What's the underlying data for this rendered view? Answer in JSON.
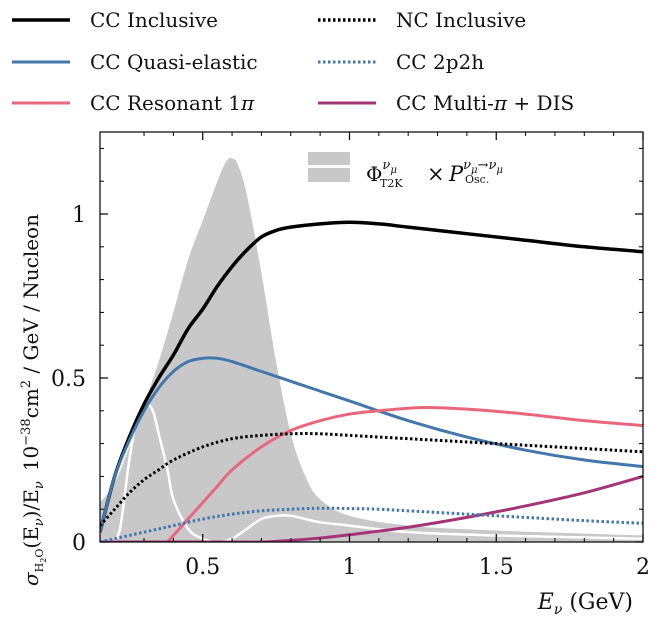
{
  "chart_data": {
    "type": "line",
    "title": "",
    "xlabel": "E_ν (GeV)",
    "xlabel_main": "E",
    "xlabel_sub": "ν",
    "xlabel_unit": " (GeV)",
    "ylabel": "σ_H2O(E_ν)/E_ν 10^-38 cm^2 / GeV / Nucleon",
    "ylabel_parts": {
      "sigma": "σ",
      "sigma_sub": "H",
      "sigma_sub2": "2",
      "sigma_sub3": "O",
      "arg": "(E",
      "arg_sub": "ν",
      "div": ")/E",
      "div_sub": "ν",
      "power": "10",
      "power_exp": "−38",
      "unit": "cm",
      "unit_exp": "2",
      "rest": " / GeV / Nucleon"
    },
    "xlim": [
      0.15,
      2.0
    ],
    "ylim": [
      0,
      1.25
    ],
    "xticks": [
      0.5,
      1.0,
      1.5,
      2.0
    ],
    "xtick_labels": [
      "0.5",
      "1",
      "1.5",
      "2"
    ],
    "yticks": [
      0,
      0.5,
      1.0
    ],
    "ytick_labels": [
      "0",
      "0.5",
      "1"
    ],
    "legend_placement": "top, outside plot, two columns",
    "flux_label": {
      "phi": "Φ",
      "phi_sup": "ν",
      "phi_sup_sub": "μ",
      "phi_sub": "T2K",
      "times": "×",
      "p": "P",
      "p_sup": "ν",
      "p_sup_sub": "μ",
      "arrow": "→",
      "p_sup2": "ν",
      "p_sup2_sub": "μ",
      "p_sub": "Osc."
    },
    "flux_band": {
      "name": "Φ T2K × P Osc.",
      "color": "#c8c8c8",
      "x": [
        0.15,
        0.2,
        0.25,
        0.3,
        0.35,
        0.4,
        0.45,
        0.5,
        0.55,
        0.58,
        0.6,
        0.62,
        0.65,
        0.7,
        0.75,
        0.8,
        0.85,
        0.9,
        1.0,
        1.2,
        1.5,
        2.0
      ],
      "values": [
        0.12,
        0.18,
        0.29,
        0.42,
        0.55,
        0.7,
        0.86,
        0.98,
        1.1,
        1.16,
        1.17,
        1.15,
        1.06,
        0.82,
        0.55,
        0.33,
        0.2,
        0.13,
        0.08,
        0.05,
        0.035,
        0.02
      ]
    },
    "white_curve": {
      "name": "oscillation shape",
      "color": "#ffffff",
      "x": [
        0.2,
        0.22,
        0.25,
        0.28,
        0.3,
        0.33,
        0.35,
        0.38,
        0.4,
        0.45,
        0.5,
        0.55,
        0.6,
        0.65,
        0.7,
        0.75,
        0.8,
        0.85,
        0.9,
        1.0,
        1.2,
        1.5,
        2.0
      ],
      "values": [
        0.0,
        0.05,
        0.25,
        0.4,
        0.43,
        0.4,
        0.33,
        0.22,
        0.13,
        0.04,
        0.01,
        0.0,
        0.01,
        0.04,
        0.07,
        0.08,
        0.08,
        0.07,
        0.06,
        0.05,
        0.03,
        0.02,
        0.01
      ]
    },
    "series": [
      {
        "name": "CC Inclusive",
        "color": "#000000",
        "style": "solid",
        "x": [
          0.15,
          0.2,
          0.25,
          0.3,
          0.35,
          0.4,
          0.45,
          0.5,
          0.55,
          0.6,
          0.65,
          0.7,
          0.75,
          0.8,
          0.9,
          1.0,
          1.1,
          1.2,
          1.4,
          1.6,
          1.8,
          2.0
        ],
        "values": [
          0.03,
          0.2,
          0.32,
          0.42,
          0.5,
          0.57,
          0.65,
          0.71,
          0.78,
          0.84,
          0.89,
          0.93,
          0.95,
          0.96,
          0.97,
          0.975,
          0.97,
          0.96,
          0.94,
          0.92,
          0.9,
          0.885
        ]
      },
      {
        "name": "CC Quasi-elastic",
        "color": "#4277ab",
        "style": "solid",
        "x": [
          0.15,
          0.2,
          0.25,
          0.3,
          0.35,
          0.4,
          0.45,
          0.5,
          0.55,
          0.6,
          0.7,
          0.8,
          0.9,
          1.0,
          1.2,
          1.4,
          1.6,
          1.8,
          2.0
        ],
        "values": [
          0.03,
          0.2,
          0.31,
          0.4,
          0.47,
          0.52,
          0.55,
          0.56,
          0.56,
          0.55,
          0.52,
          0.49,
          0.46,
          0.43,
          0.37,
          0.32,
          0.28,
          0.25,
          0.23
        ]
      },
      {
        "name": "CC Resonant 1π",
        "color": "#e9677b",
        "style": "solid",
        "x": [
          0.38,
          0.4,
          0.45,
          0.5,
          0.55,
          0.6,
          0.7,
          0.8,
          0.9,
          1.0,
          1.1,
          1.25,
          1.4,
          1.6,
          1.8,
          2.0
        ],
        "values": [
          0.0,
          0.02,
          0.07,
          0.12,
          0.17,
          0.22,
          0.29,
          0.34,
          0.37,
          0.39,
          0.4,
          0.41,
          0.405,
          0.39,
          0.37,
          0.355
        ]
      },
      {
        "name": "CC Multi-π + DIS",
        "color": "#a43475",
        "style": "solid",
        "x": [
          0.15,
          0.6,
          0.7,
          0.8,
          0.9,
          1.0,
          1.2,
          1.4,
          1.6,
          1.8,
          2.0
        ],
        "values": [
          0.0,
          0.0,
          0.0,
          0.005,
          0.012,
          0.022,
          0.045,
          0.075,
          0.11,
          0.15,
          0.2
        ]
      },
      {
        "name": "NC Inclusive",
        "color": "#000000",
        "style": "dotted",
        "x": [
          0.15,
          0.2,
          0.25,
          0.3,
          0.35,
          0.4,
          0.5,
          0.6,
          0.7,
          0.8,
          0.9,
          1.0,
          1.2,
          1.4,
          1.6,
          1.8,
          2.0
        ],
        "values": [
          0.05,
          0.1,
          0.15,
          0.19,
          0.22,
          0.25,
          0.29,
          0.315,
          0.325,
          0.33,
          0.33,
          0.325,
          0.315,
          0.305,
          0.295,
          0.285,
          0.275
        ]
      },
      {
        "name": "CC 2p2h",
        "color": "#4277ab",
        "style": "dotted",
        "x": [
          0.15,
          0.2,
          0.3,
          0.4,
          0.5,
          0.6,
          0.7,
          0.8,
          0.9,
          1.0,
          1.1,
          1.2,
          1.4,
          1.6,
          1.8,
          2.0
        ],
        "values": [
          0.0,
          0.01,
          0.03,
          0.05,
          0.07,
          0.085,
          0.095,
          0.1,
          0.103,
          0.102,
          0.1,
          0.095,
          0.085,
          0.075,
          0.065,
          0.057
        ]
      }
    ],
    "legend": [
      {
        "label": "CC Inclusive",
        "main": "CC Inclusive",
        "color": "#000000",
        "style": "solid",
        "col": 0,
        "row": 0
      },
      {
        "label": "NC Inclusive",
        "main": "NC Inclusive",
        "color": "#000000",
        "style": "dotted",
        "col": 1,
        "row": 0
      },
      {
        "label": "CC Quasi-elastic",
        "main": "CC Quasi-elastic",
        "color": "#4277ab",
        "style": "solid",
        "col": 0,
        "row": 1
      },
      {
        "label": "CC 2p2h",
        "main": "CC 2p2h",
        "color": "#4277ab",
        "style": "dotted",
        "col": 1,
        "row": 1
      },
      {
        "label": "CC Resonant 1π",
        "main": "CC Resonant 1",
        "italic": "π",
        "color": "#e9677b",
        "style": "solid",
        "col": 0,
        "row": 2
      },
      {
        "label": "CC Multi-π + DIS",
        "main": "CC Multi-",
        "italic": "π",
        "tail": " + DIS",
        "color": "#a43475",
        "style": "solid",
        "col": 1,
        "row": 2
      }
    ]
  }
}
